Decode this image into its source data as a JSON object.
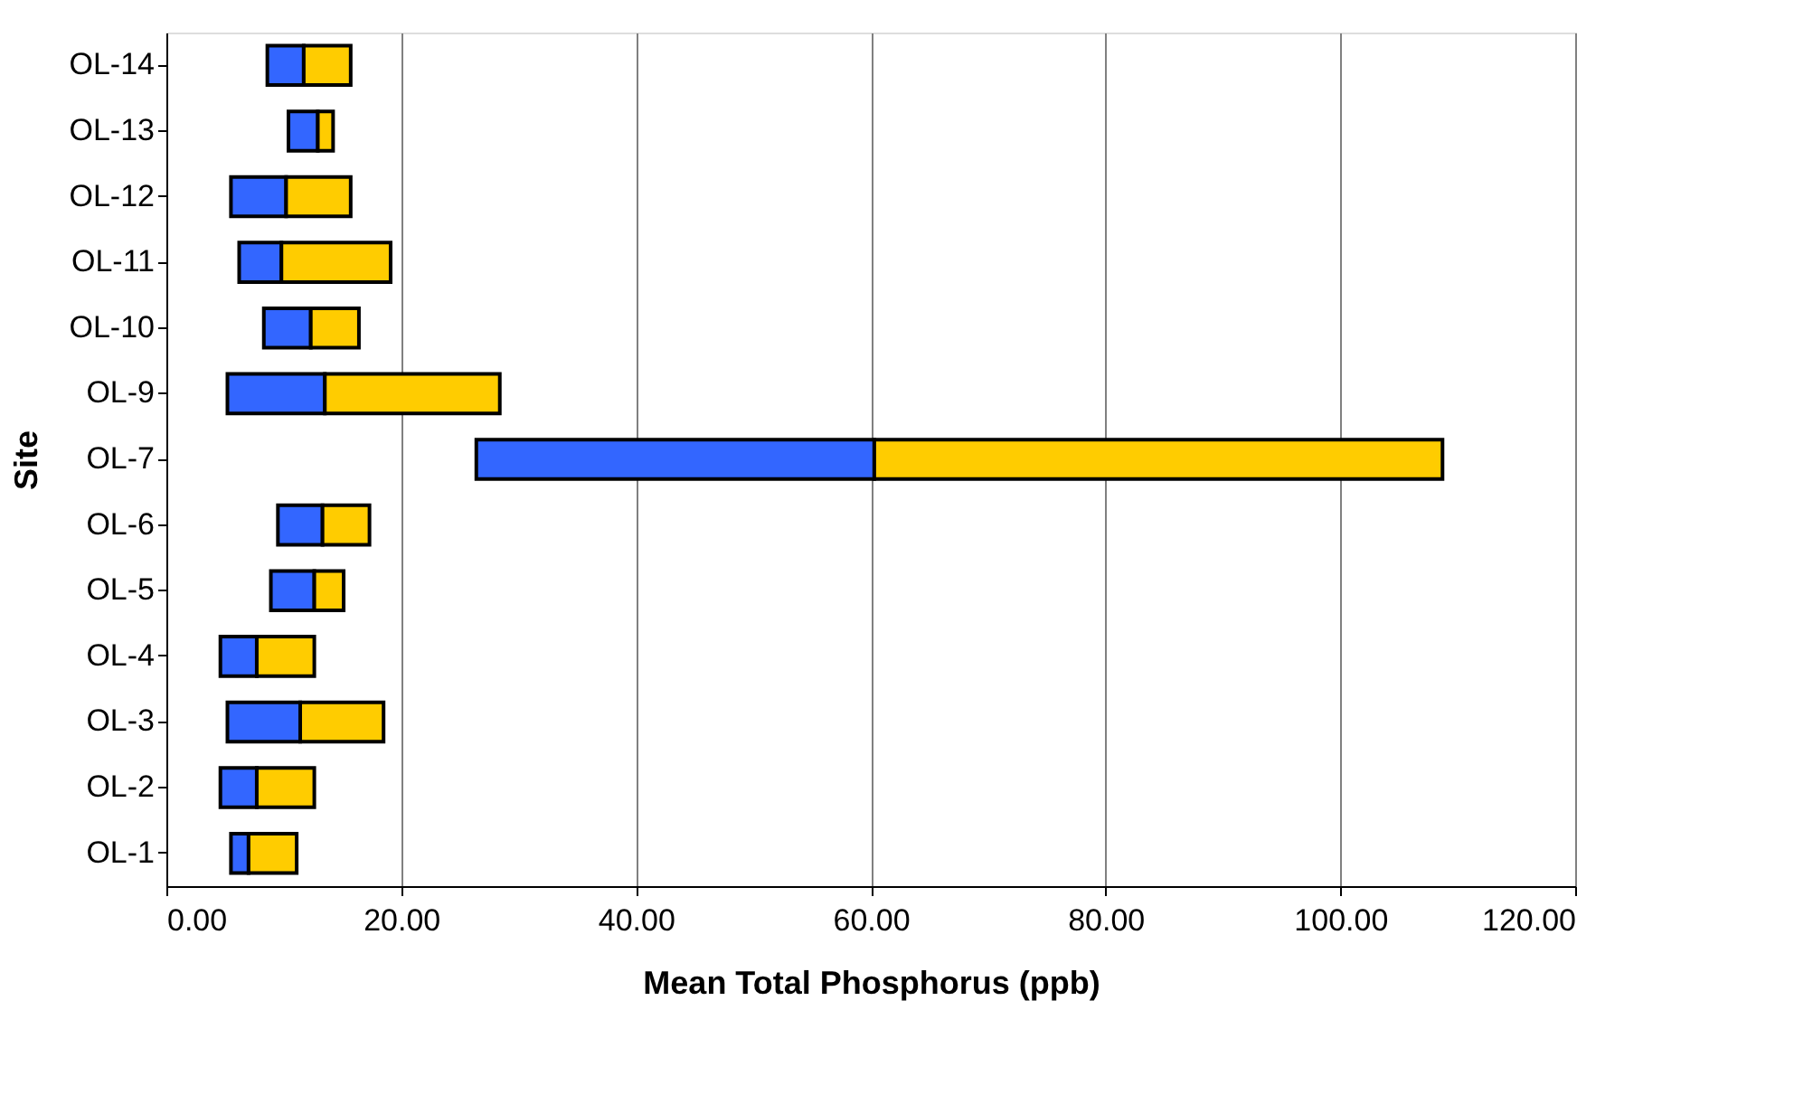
{
  "chart_data": {
    "type": "bar",
    "orientation": "horizontal",
    "xlabel": "Mean Total Phosphorus (ppb)",
    "ylabel": "Site",
    "categories": [
      "OL-14",
      "OL-13",
      "OL-12",
      "OL-11",
      "OL-10",
      "OL-9",
      "OL-7",
      "OL-6",
      "OL-5",
      "OL-4",
      "OL-3",
      "OL-2",
      "OL-1"
    ],
    "series": [
      {
        "color": "#3366ff",
        "base": [
          8.6,
          10.4,
          5.5,
          6.2,
          8.3,
          5.2,
          26.4,
          9.5,
          8.9,
          4.6,
          5.2,
          4.6,
          5.5
        ],
        "values": [
          3.1,
          2.5,
          4.7,
          3.6,
          4.0,
          8.3,
          33.9,
          3.8,
          3.7,
          3.1,
          6.2,
          3.1,
          1.5
        ]
      },
      {
        "color": "#ffcc00",
        "base": [
          11.7,
          12.9,
          10.2,
          9.8,
          12.3,
          13.5,
          60.3,
          13.3,
          12.6,
          7.7,
          11.4,
          7.7,
          7.0
        ],
        "values": [
          4.0,
          1.3,
          5.5,
          9.3,
          4.1,
          14.9,
          48.4,
          4.0,
          2.5,
          4.9,
          7.1,
          4.9,
          4.1
        ]
      }
    ],
    "xlim": [
      0,
      120
    ],
    "xticks": [
      {
        "value": 0,
        "label": "0.00"
      },
      {
        "value": 20,
        "label": "20.00"
      },
      {
        "value": 40,
        "label": "40.00"
      },
      {
        "value": 60,
        "label": "60.00"
      },
      {
        "value": 80,
        "label": "80.00"
      },
      {
        "value": 100,
        "label": "100.00"
      },
      {
        "value": 120,
        "label": "120.00"
      }
    ],
    "grid": "x",
    "legend": false
  }
}
